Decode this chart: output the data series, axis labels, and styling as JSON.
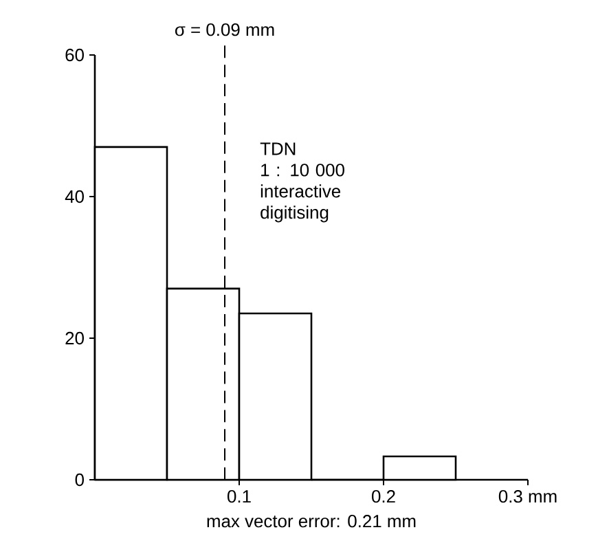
{
  "chart_data": {
    "type": "histogram",
    "xlabel": "max vector error: 0.21 mm",
    "bins": [
      0,
      0.05,
      0.1,
      0.15,
      0.2,
      0.25
    ],
    "values": [
      47,
      27,
      23.5,
      0,
      3.3
    ],
    "color": "#000000",
    "xlim": [
      0,
      0.3
    ],
    "ylim": [
      0,
      60
    ],
    "xticks": [
      0.1,
      0.2,
      {
        "value": 0.3,
        "label": "0.3 mm"
      }
    ],
    "yticks": [
      0,
      20,
      40,
      60
    ],
    "ref_lines": [
      {
        "axis": "x",
        "value": 0.09,
        "label": "σ = 0.09 mm",
        "line_style": "dashed"
      }
    ],
    "annotations": [
      "TDN",
      "1 : 10 000",
      "interactive digitising"
    ]
  }
}
